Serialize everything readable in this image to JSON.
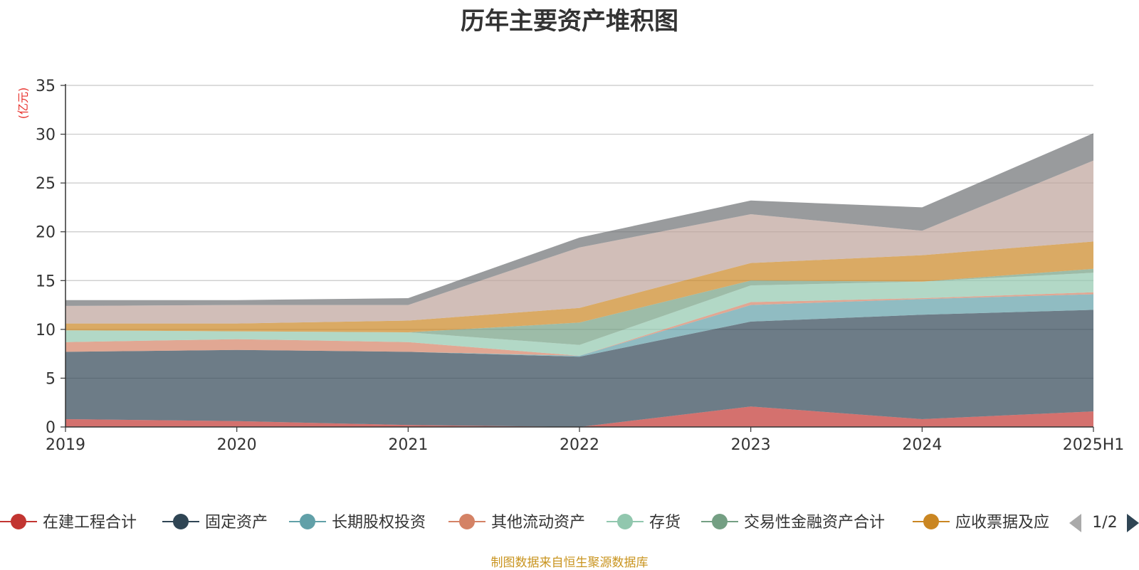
{
  "chart_data": {
    "type": "area",
    "stacked": true,
    "title": "历年主要资产堆积图",
    "ylabel": "(亿元)",
    "xlabel": "",
    "ylim": [
      0,
      35
    ],
    "yticks": [
      0,
      5,
      10,
      15,
      20,
      25,
      30,
      35
    ],
    "grid": true,
    "categories": [
      "2019",
      "2020",
      "2021",
      "2022",
      "2023",
      "2024",
      "2025H1"
    ],
    "series": [
      {
        "name": "在建工程合计",
        "color": "#c23531",
        "values": [
          0.8,
          0.6,
          0.2,
          0.0,
          2.1,
          0.8,
          1.6
        ]
      },
      {
        "name": "固定资产",
        "color": "#2f4554",
        "values": [
          6.9,
          7.3,
          7.5,
          7.2,
          8.7,
          10.7,
          10.4
        ]
      },
      {
        "name": "长期股权投资",
        "color": "#61a0a8",
        "values": [
          0.0,
          0.0,
          0.0,
          0.1,
          1.7,
          1.6,
          1.6
        ]
      },
      {
        "name": "其他流动资产",
        "color": "#d48265",
        "values": [
          1.0,
          1.1,
          1.0,
          0.0,
          0.3,
          0.1,
          0.2
        ]
      },
      {
        "name": "存货",
        "color": "#91c7ae",
        "values": [
          1.2,
          0.8,
          1.0,
          1.1,
          1.7,
          1.7,
          2.0
        ]
      },
      {
        "name": "交易性金融资产合计",
        "color": "#749f83",
        "values": [
          0.0,
          0.0,
          0.0,
          2.3,
          0.5,
          0.0,
          0.4
        ]
      },
      {
        "name": "应收票据及应收账款",
        "color": "#ca8622",
        "values": [
          0.7,
          0.8,
          1.2,
          1.5,
          1.8,
          2.7,
          2.8
        ]
      },
      {
        "name": "",
        "color": "#bda29a",
        "values": [
          1.8,
          1.9,
          1.6,
          6.2,
          5.0,
          2.5,
          8.3
        ]
      },
      {
        "name": "",
        "color": "#6e7074",
        "values": [
          0.6,
          0.5,
          0.7,
          1.0,
          1.4,
          2.4,
          2.8
        ]
      }
    ],
    "legend": {
      "placement": "bottom",
      "visible": [
        "在建工程合计",
        "固定资产",
        "长期股权投资",
        "其他流动资产",
        "存货",
        "交易性金融资产合计",
        "应收票据及应"
      ],
      "page": "1/2"
    }
  },
  "footer": {
    "source": "制图数据来自恒生聚源数据库"
  }
}
